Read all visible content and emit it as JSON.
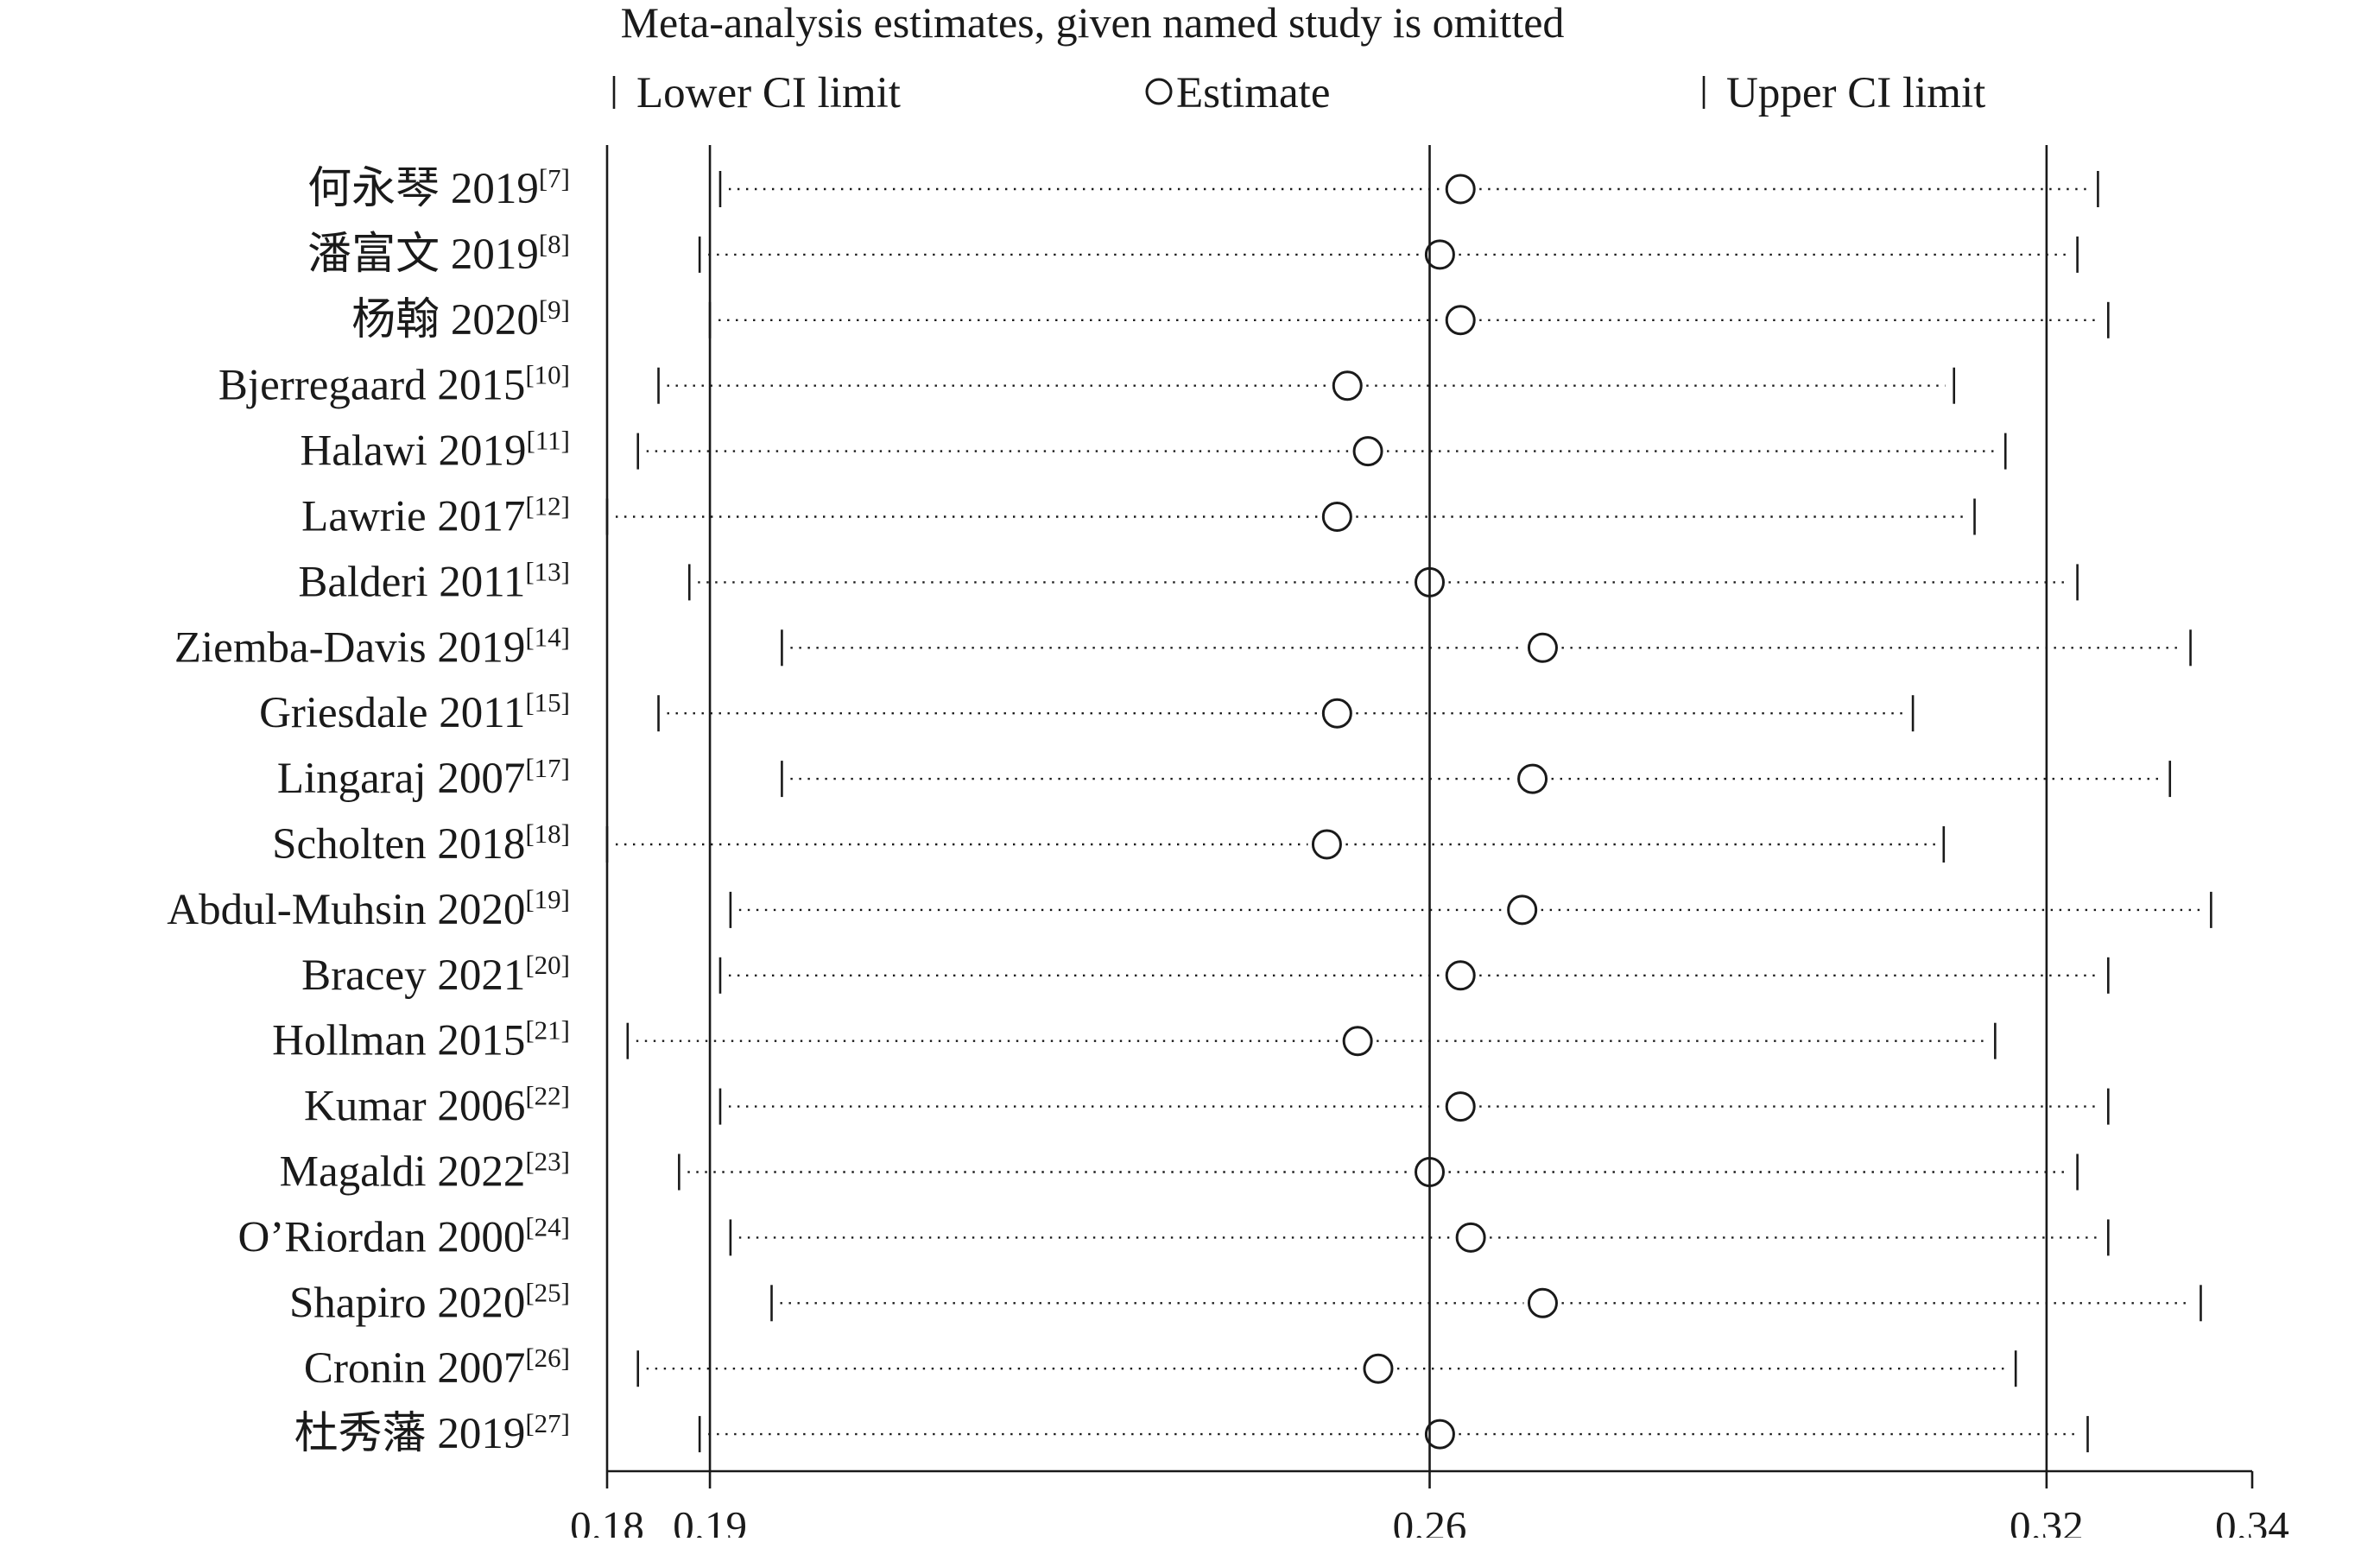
{
  "chart_data": {
    "type": "scatter",
    "title": "Meta-analysis estimates, given named study is omitted",
    "legend": {
      "placement": "top",
      "entries": [
        {
          "marker": "bar",
          "label": "Lower CI limit"
        },
        {
          "marker": "circle",
          "label": "Estimate"
        },
        {
          "marker": "bar",
          "label": "Upper CI limit"
        }
      ]
    },
    "x_ticks": [
      {
        "value": 0.18,
        "label": "0.18"
      },
      {
        "value": 0.19,
        "label": "0.19"
      },
      {
        "value": 0.26,
        "label": "0.26"
      },
      {
        "value": 0.32,
        "label": "0.32"
      },
      {
        "value": 0.34,
        "label": "0.34"
      }
    ],
    "reference_lines": [
      0.19,
      0.26,
      0.32
    ],
    "xlim": [
      0.18,
      0.34
    ],
    "grid": false,
    "studies": [
      {
        "name": "何永琴 2019",
        "ref": "[7]",
        "lower": 0.191,
        "estimate": 0.263,
        "upper": 0.325
      },
      {
        "name": "潘富文 2019",
        "ref": "[8]",
        "lower": 0.189,
        "estimate": 0.261,
        "upper": 0.323
      },
      {
        "name": "杨翰 2020",
        "ref": "[9]",
        "lower": 0.19,
        "estimate": 0.263,
        "upper": 0.326
      },
      {
        "name": "Bjerregaard 2015",
        "ref": "[10]",
        "lower": 0.185,
        "estimate": 0.252,
        "upper": 0.311
      },
      {
        "name": "Halawi 2019",
        "ref": "[11]",
        "lower": 0.183,
        "estimate": 0.254,
        "upper": 0.316
      },
      {
        "name": "Lawrie 2017",
        "ref": "[12]",
        "lower": 0.18,
        "estimate": 0.251,
        "upper": 0.313
      },
      {
        "name": "Balderi 2011",
        "ref": "[13]",
        "lower": 0.188,
        "estimate": 0.26,
        "upper": 0.323
      },
      {
        "name": "Ziemba-Davis 2019",
        "ref": "[14]",
        "lower": 0.197,
        "estimate": 0.271,
        "upper": 0.334
      },
      {
        "name": "Griesdale 2011",
        "ref": "[15]",
        "lower": 0.185,
        "estimate": 0.251,
        "upper": 0.307
      },
      {
        "name": "Lingaraj 2007",
        "ref": "[17]",
        "lower": 0.197,
        "estimate": 0.27,
        "upper": 0.332
      },
      {
        "name": "Scholten 2018",
        "ref": "[18]",
        "lower": 0.18,
        "estimate": 0.25,
        "upper": 0.31
      },
      {
        "name": "Abdul-Muhsin 2020",
        "ref": "[19]",
        "lower": 0.192,
        "estimate": 0.269,
        "upper": 0.336
      },
      {
        "name": "Bracey 2021",
        "ref": "[20]",
        "lower": 0.191,
        "estimate": 0.263,
        "upper": 0.326
      },
      {
        "name": "Hollman 2015",
        "ref": "[21]",
        "lower": 0.182,
        "estimate": 0.253,
        "upper": 0.315
      },
      {
        "name": "Kumar 2006",
        "ref": "[22]",
        "lower": 0.191,
        "estimate": 0.263,
        "upper": 0.326
      },
      {
        "name": "Magaldi 2022",
        "ref": "[23]",
        "lower": 0.187,
        "estimate": 0.26,
        "upper": 0.323
      },
      {
        "name": "O’Riordan 2000",
        "ref": "[24]",
        "lower": 0.192,
        "estimate": 0.264,
        "upper": 0.326
      },
      {
        "name": "Shapiro 2020",
        "ref": "[25]",
        "lower": 0.196,
        "estimate": 0.271,
        "upper": 0.335
      },
      {
        "name": "Cronin 2007",
        "ref": "[26]",
        "lower": 0.183,
        "estimate": 0.255,
        "upper": 0.317
      },
      {
        "name": "杜秀藩 2019",
        "ref": "[27]",
        "lower": 0.189,
        "estimate": 0.261,
        "upper": 0.324
      }
    ]
  }
}
